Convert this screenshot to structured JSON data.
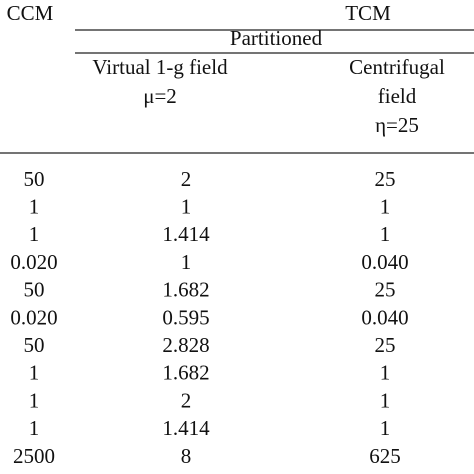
{
  "header": {
    "ccm": "CCM",
    "tcm": "TCM",
    "partitioned": "Partitioned",
    "col2": [
      "Virtual 1-g field",
      "μ=2"
    ],
    "col3": [
      "Centrifugal",
      "field",
      "η=25"
    ]
  },
  "table": {
    "rows": [
      [
        "50",
        "2",
        "25"
      ],
      [
        "1",
        "1",
        "1"
      ],
      [
        "1",
        "1.414",
        "1"
      ],
      [
        "0.020",
        "1",
        "0.040"
      ],
      [
        "50",
        "1.682",
        "25"
      ],
      [
        "0.020",
        "0.595",
        "0.040"
      ],
      [
        "50",
        "2.828",
        "25"
      ],
      [
        "1",
        "1.682",
        "1"
      ],
      [
        "1",
        "2",
        "1"
      ],
      [
        "1",
        "1.414",
        "1"
      ],
      [
        "2500",
        "8",
        "625"
      ]
    ]
  }
}
